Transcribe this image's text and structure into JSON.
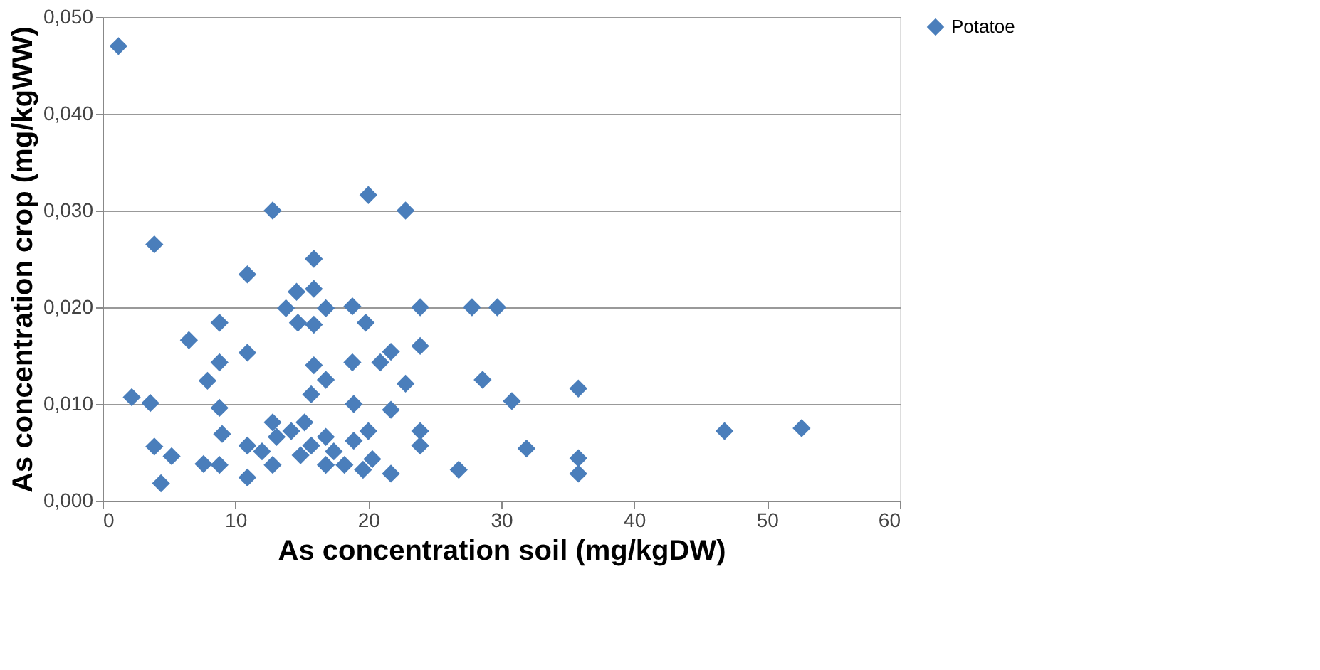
{
  "chart_data": {
    "type": "scatter",
    "xlabel": "As concentration soil (mg/kgDW)",
    "ylabel": "As concentration crop (mg/kgWW)",
    "xlim": [
      0,
      60
    ],
    "xticks": [
      0,
      10,
      20,
      30,
      40,
      50,
      60
    ],
    "ylim": [
      0,
      0.05
    ],
    "yticks": [
      {
        "value": 0,
        "label": "0,000"
      },
      {
        "value": 0.01,
        "label": "0,010"
      },
      {
        "value": 0.02,
        "label": "0,020"
      },
      {
        "value": 0.03,
        "label": "0,030"
      },
      {
        "value": 0.04,
        "label": "0,040"
      },
      {
        "value": 0.05,
        "label": "0,050"
      }
    ],
    "grid": "y",
    "legend": "right",
    "marker": "diamond",
    "series": [
      {
        "name": "Potatoe",
        "color": "#4a7ebb",
        "x": [
          1.2,
          3.9,
          10.9,
          15.9,
          14.6,
          15.9,
          13.8,
          16.8,
          14.7,
          15.9,
          18.8,
          19.8,
          8.8,
          6.5,
          10.9,
          8.8,
          15.9,
          18.8,
          7.9,
          16.8,
          15.7,
          2.2,
          3.6,
          8.8,
          18.9,
          9.0,
          3.9,
          5.2,
          7.6,
          8.8,
          4.4,
          10.9,
          10.9,
          12.8,
          13.1,
          12.8,
          14.2,
          15.2,
          15.7,
          16.8,
          17.4,
          16.8,
          18.2,
          18.9,
          19.6,
          12.0,
          14.9,
          23.9,
          27.8,
          29.7,
          23.9,
          21.7,
          20.9,
          22.8,
          28.6,
          30.8,
          35.8,
          21.7,
          20.0,
          23.9,
          23.9,
          31.9,
          35.8,
          35.8,
          26.8,
          21.7,
          20.3,
          46.8,
          52.6,
          20.0,
          22.8,
          12.8
        ],
        "values": [
          0.047,
          0.0265,
          0.0234,
          0.025,
          0.0216,
          0.0219,
          0.0199,
          0.0199,
          0.0184,
          0.0182,
          0.0201,
          0.0184,
          0.0184,
          0.0166,
          0.0153,
          0.0143,
          0.014,
          0.0143,
          0.0124,
          0.0125,
          0.011,
          0.0107,
          0.0101,
          0.0096,
          0.01,
          0.0069,
          0.0056,
          0.0046,
          0.0038,
          0.0037,
          0.0018,
          0.0024,
          0.0057,
          0.0081,
          0.0066,
          0.0037,
          0.0072,
          0.0081,
          0.0057,
          0.0066,
          0.0051,
          0.0037,
          0.0037,
          0.0062,
          0.0032,
          0.0051,
          0.0047,
          0.02,
          0.02,
          0.02,
          0.016,
          0.0154,
          0.0143,
          0.0121,
          0.0125,
          0.0103,
          0.0116,
          0.0094,
          0.0072,
          0.0072,
          0.0057,
          0.0054,
          0.0044,
          0.0028,
          0.0032,
          0.0028,
          0.0043,
          0.0072,
          0.0075,
          0.0316,
          0.03,
          0.03
        ]
      }
    ]
  }
}
